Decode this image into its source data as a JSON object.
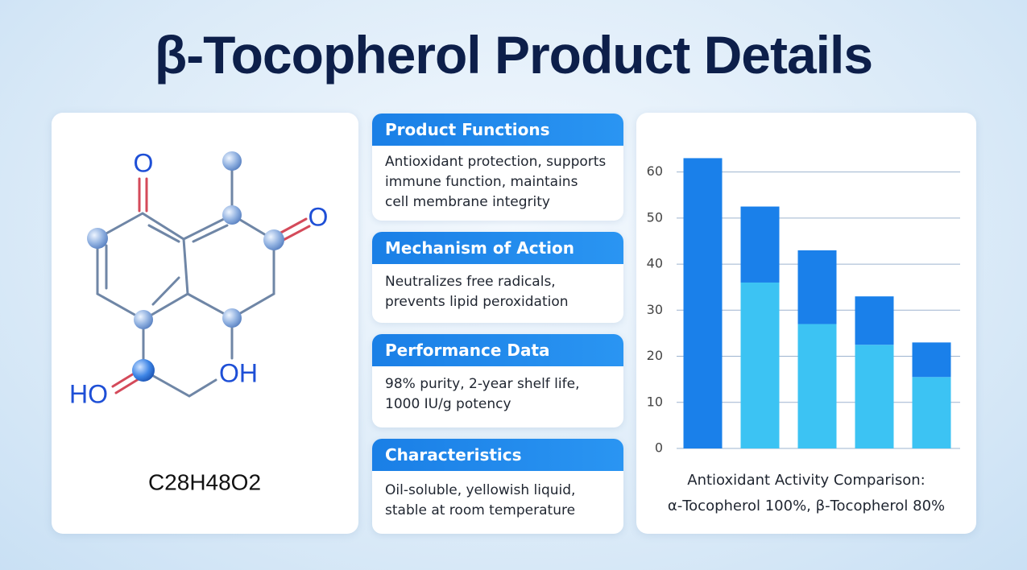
{
  "header": {
    "title": "β-Tocopherol Product Details"
  },
  "molecule": {
    "atoms": [
      "O",
      "O",
      "OH",
      "HO"
    ],
    "formula": "C28H48O2"
  },
  "cards": [
    {
      "title": "Product Functions",
      "lines": [
        "Antioxidant protection, supports",
        "immune function, maintains",
        "cell membrane integrity"
      ]
    },
    {
      "title": "Mechanism of Action",
      "lines": [
        "Neutralizes free radicals,",
        "prevents lipid peroxidation"
      ]
    },
    {
      "title": "Performance Data",
      "lines": [
        "98% purity, 2-year shelf life,",
        "1000 IU/g potency"
      ]
    },
    {
      "title": "Characteristics",
      "lines": [
        "Oil-soluble, yellowish liquid,",
        "stable at room temperature"
      ]
    }
  ],
  "chart_data": {
    "type": "bar",
    "stacked": true,
    "categories": [
      null,
      null,
      null,
      null,
      null
    ],
    "series": [
      {
        "color": "#3cc3f3",
        "values": [
          null,
          36,
          27,
          22.5,
          15.5
        ]
      },
      {
        "color": "#1a80ea",
        "values": [
          63,
          16.5,
          16,
          10.5,
          7.5
        ]
      }
    ],
    "ylim": [
      0,
      65
    ],
    "yticks": [
      0,
      10,
      20,
      30,
      40,
      50,
      60
    ],
    "grid": true,
    "caption": [
      "Antioxidant Activity Comparison:",
      "α-Tocopherol 100%, β-Tocopherol 80%"
    ]
  }
}
